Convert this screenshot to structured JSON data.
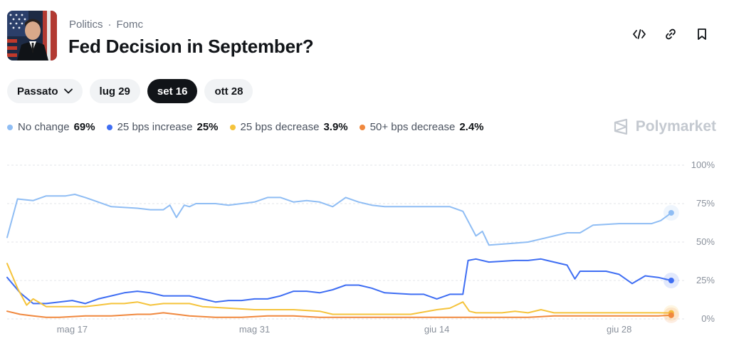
{
  "market": {
    "breadcrumb": [
      "Politics",
      "Fomc"
    ],
    "title": "Fed Decision in September?"
  },
  "header_icons": [
    "embed-code-icon",
    "link-icon",
    "bookmark-icon"
  ],
  "filters": {
    "dropdown_label": "Passato",
    "dates": [
      "lug 29",
      "set 16",
      "ott 28"
    ],
    "selected": "set 16"
  },
  "brand": {
    "name": "Polymarket"
  },
  "chart_data": {
    "type": "line",
    "ylim": [
      0,
      100
    ],
    "y_ticks": [
      "100%",
      "75%",
      "50%",
      "25%",
      "0%"
    ],
    "y_tick_values": [
      100,
      75,
      50,
      25,
      0
    ],
    "x_ticks": [
      "mag 17",
      "mag 31",
      "giu 14",
      "giu 28"
    ],
    "x_tick_values": [
      5,
      19,
      33,
      47
    ],
    "x_range": [
      0,
      51.5
    ],
    "grid": true,
    "series": [
      {
        "name": "No change",
        "value_label": "69%",
        "color": "#8fbdf4",
        "points": [
          [
            0,
            53
          ],
          [
            0.8,
            78
          ],
          [
            2,
            77
          ],
          [
            3,
            80
          ],
          [
            4.5,
            80
          ],
          [
            5.2,
            81
          ],
          [
            6,
            79
          ],
          [
            7,
            76
          ],
          [
            8,
            73
          ],
          [
            10,
            72
          ],
          [
            11,
            71
          ],
          [
            12,
            71
          ],
          [
            12.5,
            74
          ],
          [
            13,
            66
          ],
          [
            13.6,
            74
          ],
          [
            14,
            73
          ],
          [
            14.5,
            75
          ],
          [
            16,
            75
          ],
          [
            17,
            74
          ],
          [
            18,
            75
          ],
          [
            19,
            76
          ],
          [
            20,
            79
          ],
          [
            21,
            79
          ],
          [
            22,
            76
          ],
          [
            23,
            77
          ],
          [
            24,
            76
          ],
          [
            25,
            73
          ],
          [
            26,
            79
          ],
          [
            27,
            76
          ],
          [
            28,
            74
          ],
          [
            29,
            73
          ],
          [
            31,
            73
          ],
          [
            34,
            73
          ],
          [
            35,
            70
          ],
          [
            36,
            54
          ],
          [
            36.5,
            57
          ],
          [
            37,
            48
          ],
          [
            38.5,
            49
          ],
          [
            40,
            50
          ],
          [
            42,
            54
          ],
          [
            43,
            56
          ],
          [
            44,
            56
          ],
          [
            45,
            61
          ],
          [
            47,
            62
          ],
          [
            49.5,
            62
          ],
          [
            50.2,
            64
          ],
          [
            51,
            69
          ]
        ]
      },
      {
        "name": "25 bps increase",
        "value_label": "25%",
        "color": "#3f6ef3",
        "points": [
          [
            0,
            27
          ],
          [
            1,
            17
          ],
          [
            2,
            10
          ],
          [
            3,
            10
          ],
          [
            4,
            11
          ],
          [
            5,
            12
          ],
          [
            6,
            10
          ],
          [
            7,
            13
          ],
          [
            8,
            15
          ],
          [
            9,
            17
          ],
          [
            10,
            18
          ],
          [
            11,
            17
          ],
          [
            12,
            15
          ],
          [
            13,
            15
          ],
          [
            14,
            15
          ],
          [
            15,
            13
          ],
          [
            16,
            11
          ],
          [
            17,
            12
          ],
          [
            18,
            12
          ],
          [
            19,
            13
          ],
          [
            20,
            13
          ],
          [
            21,
            15
          ],
          [
            22,
            18
          ],
          [
            23,
            18
          ],
          [
            24,
            17
          ],
          [
            25,
            19
          ],
          [
            26,
            22
          ],
          [
            27,
            22
          ],
          [
            28,
            20
          ],
          [
            29,
            17
          ],
          [
            31,
            16
          ],
          [
            32,
            16
          ],
          [
            33,
            13
          ],
          [
            34,
            16
          ],
          [
            35,
            16
          ],
          [
            35.4,
            38
          ],
          [
            36,
            39
          ],
          [
            37,
            37
          ],
          [
            39,
            38
          ],
          [
            40,
            38
          ],
          [
            41,
            39
          ],
          [
            42,
            37
          ],
          [
            43,
            35
          ],
          [
            43.6,
            26
          ],
          [
            44,
            31
          ],
          [
            46,
            31
          ],
          [
            47,
            29
          ],
          [
            48,
            23
          ],
          [
            49,
            28
          ],
          [
            50,
            27
          ],
          [
            51,
            25
          ]
        ]
      },
      {
        "name": "25 bps decrease",
        "value_label": "3.9%",
        "color": "#f5c33b",
        "points": [
          [
            0,
            36
          ],
          [
            0.8,
            20
          ],
          [
            1.5,
            9
          ],
          [
            2,
            13
          ],
          [
            3,
            8
          ],
          [
            5,
            8
          ],
          [
            6,
            8
          ],
          [
            7,
            9
          ],
          [
            8,
            10
          ],
          [
            9,
            10
          ],
          [
            10,
            11
          ],
          [
            11,
            9
          ],
          [
            12,
            10
          ],
          [
            13,
            10
          ],
          [
            14,
            10
          ],
          [
            15,
            8
          ],
          [
            17,
            7
          ],
          [
            19,
            6
          ],
          [
            21,
            6
          ],
          [
            22,
            6
          ],
          [
            24,
            5
          ],
          [
            25,
            3
          ],
          [
            27,
            3
          ],
          [
            29,
            3
          ],
          [
            31,
            3
          ],
          [
            33,
            6
          ],
          [
            34,
            7
          ],
          [
            35,
            11
          ],
          [
            35.5,
            5
          ],
          [
            36,
            4
          ],
          [
            38,
            4
          ],
          [
            39,
            5
          ],
          [
            40,
            4
          ],
          [
            41,
            6
          ],
          [
            42,
            4
          ],
          [
            44,
            4
          ],
          [
            46,
            4
          ],
          [
            48,
            4
          ],
          [
            50,
            4
          ],
          [
            51,
            3.9
          ]
        ]
      },
      {
        "name": "50+ bps decrease",
        "value_label": "2.4%",
        "color": "#f0883e",
        "points": [
          [
            0,
            5
          ],
          [
            1,
            3
          ],
          [
            2,
            2
          ],
          [
            3,
            1
          ],
          [
            4,
            1
          ],
          [
            6,
            2
          ],
          [
            8,
            2
          ],
          [
            10,
            3
          ],
          [
            11,
            3
          ],
          [
            12,
            4
          ],
          [
            13,
            3
          ],
          [
            14,
            2
          ],
          [
            16,
            1
          ],
          [
            18,
            1
          ],
          [
            20,
            2
          ],
          [
            22,
            2
          ],
          [
            24,
            1
          ],
          [
            26,
            1
          ],
          [
            28,
            1
          ],
          [
            30,
            1
          ],
          [
            32,
            1
          ],
          [
            34,
            1
          ],
          [
            36,
            1
          ],
          [
            38,
            1
          ],
          [
            40,
            1
          ],
          [
            42,
            2
          ],
          [
            44,
            2
          ],
          [
            46,
            2
          ],
          [
            48,
            2
          ],
          [
            50,
            2
          ],
          [
            51,
            2.4
          ]
        ]
      }
    ]
  }
}
